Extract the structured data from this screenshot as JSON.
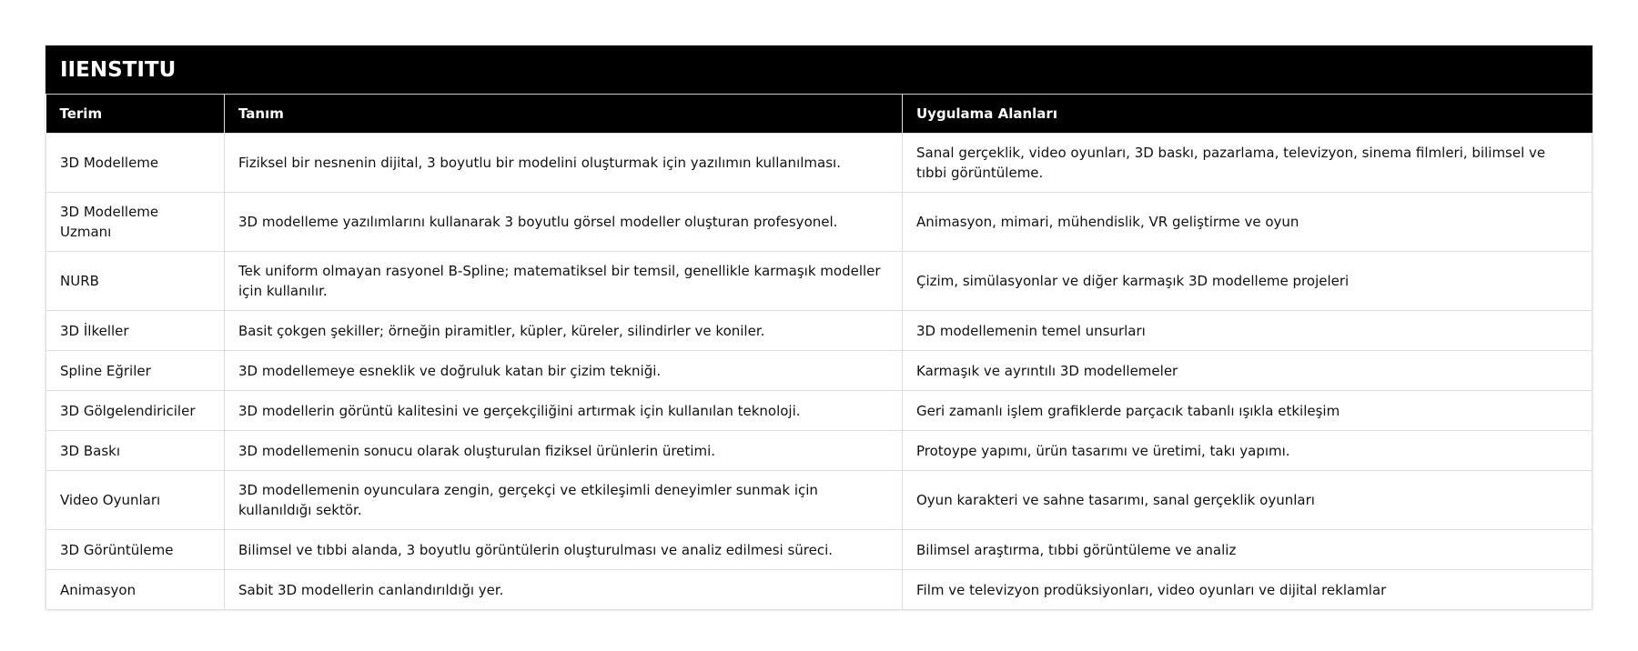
{
  "title": "IIENSTITU",
  "headers": [
    "Terim",
    "Tanım",
    "Uygulama Alanları"
  ],
  "rows": [
    [
      "3D Modelleme",
      "Fiziksel bir nesnenin dijital, 3 boyutlu bir modelini oluşturmak için yazılımın kullanılması.",
      "Sanal gerçeklik, video oyunları, 3D baskı, pazarlama, televizyon, sinema filmleri, bilimsel ve tıbbi görüntüleme."
    ],
    [
      "3D Modelleme Uzmanı",
      "3D modelleme yazılımlarını kullanarak 3 boyutlu görsel modeller oluşturan profesyonel.",
      "Animasyon, mimari, mühendislik, VR geliştirme ve oyun"
    ],
    [
      "NURB",
      "Tek uniform olmayan rasyonel B-Spline; matematiksel bir temsil, genellikle karmaşık modeller için kullanılır.",
      "Çizim, simülasyonlar ve diğer karmaşık 3D modelleme projeleri"
    ],
    [
      "3D İlkeller",
      "Basit çokgen şekiller; örneğin piramitler, küpler, küreler, silindirler ve koniler.",
      "3D modellemenin temel unsurları"
    ],
    [
      "Spline Eğriler",
      "3D modellemeye esneklik ve doğruluk katan bir çizim tekniği.",
      "Karmaşık ve ayrıntılı 3D modellemeler"
    ],
    [
      "3D Gölgelendiriciler",
      "3D modellerin görüntü kalitesini ve gerçekçiliğini artırmak için kullanılan teknoloji.",
      "Geri zamanlı işlem grafiklerde parçacık tabanlı ışıkla etkileşim"
    ],
    [
      "3D Baskı",
      "3D modellemenin sonucu olarak oluşturulan fiziksel ürünlerin üretimi.",
      "Protoype yapımı, ürün tasarımı ve üretimi, takı yapımı."
    ],
    [
      "Video Oyunları",
      "3D modellemenin oyunculara zengin, gerçekçi ve etkileşimli deneyimler sunmak için kullanıldığı sektör.",
      "Oyun karakteri ve sahne tasarımı, sanal gerçeklik oyunları"
    ],
    [
      "3D Görüntüleme",
      "Bilimsel ve tıbbi alanda, 3 boyutlu görüntülerin oluşturulması ve analiz edilmesi süreci.",
      "Bilimsel araştırma, tıbbi görüntüleme ve analiz"
    ],
    [
      "Animasyon",
      "Sabit 3D modellerin canlandırıldığı yer.",
      "Film ve televizyon prodüksiyonları, video oyunları ve dijital reklamlar"
    ]
  ]
}
